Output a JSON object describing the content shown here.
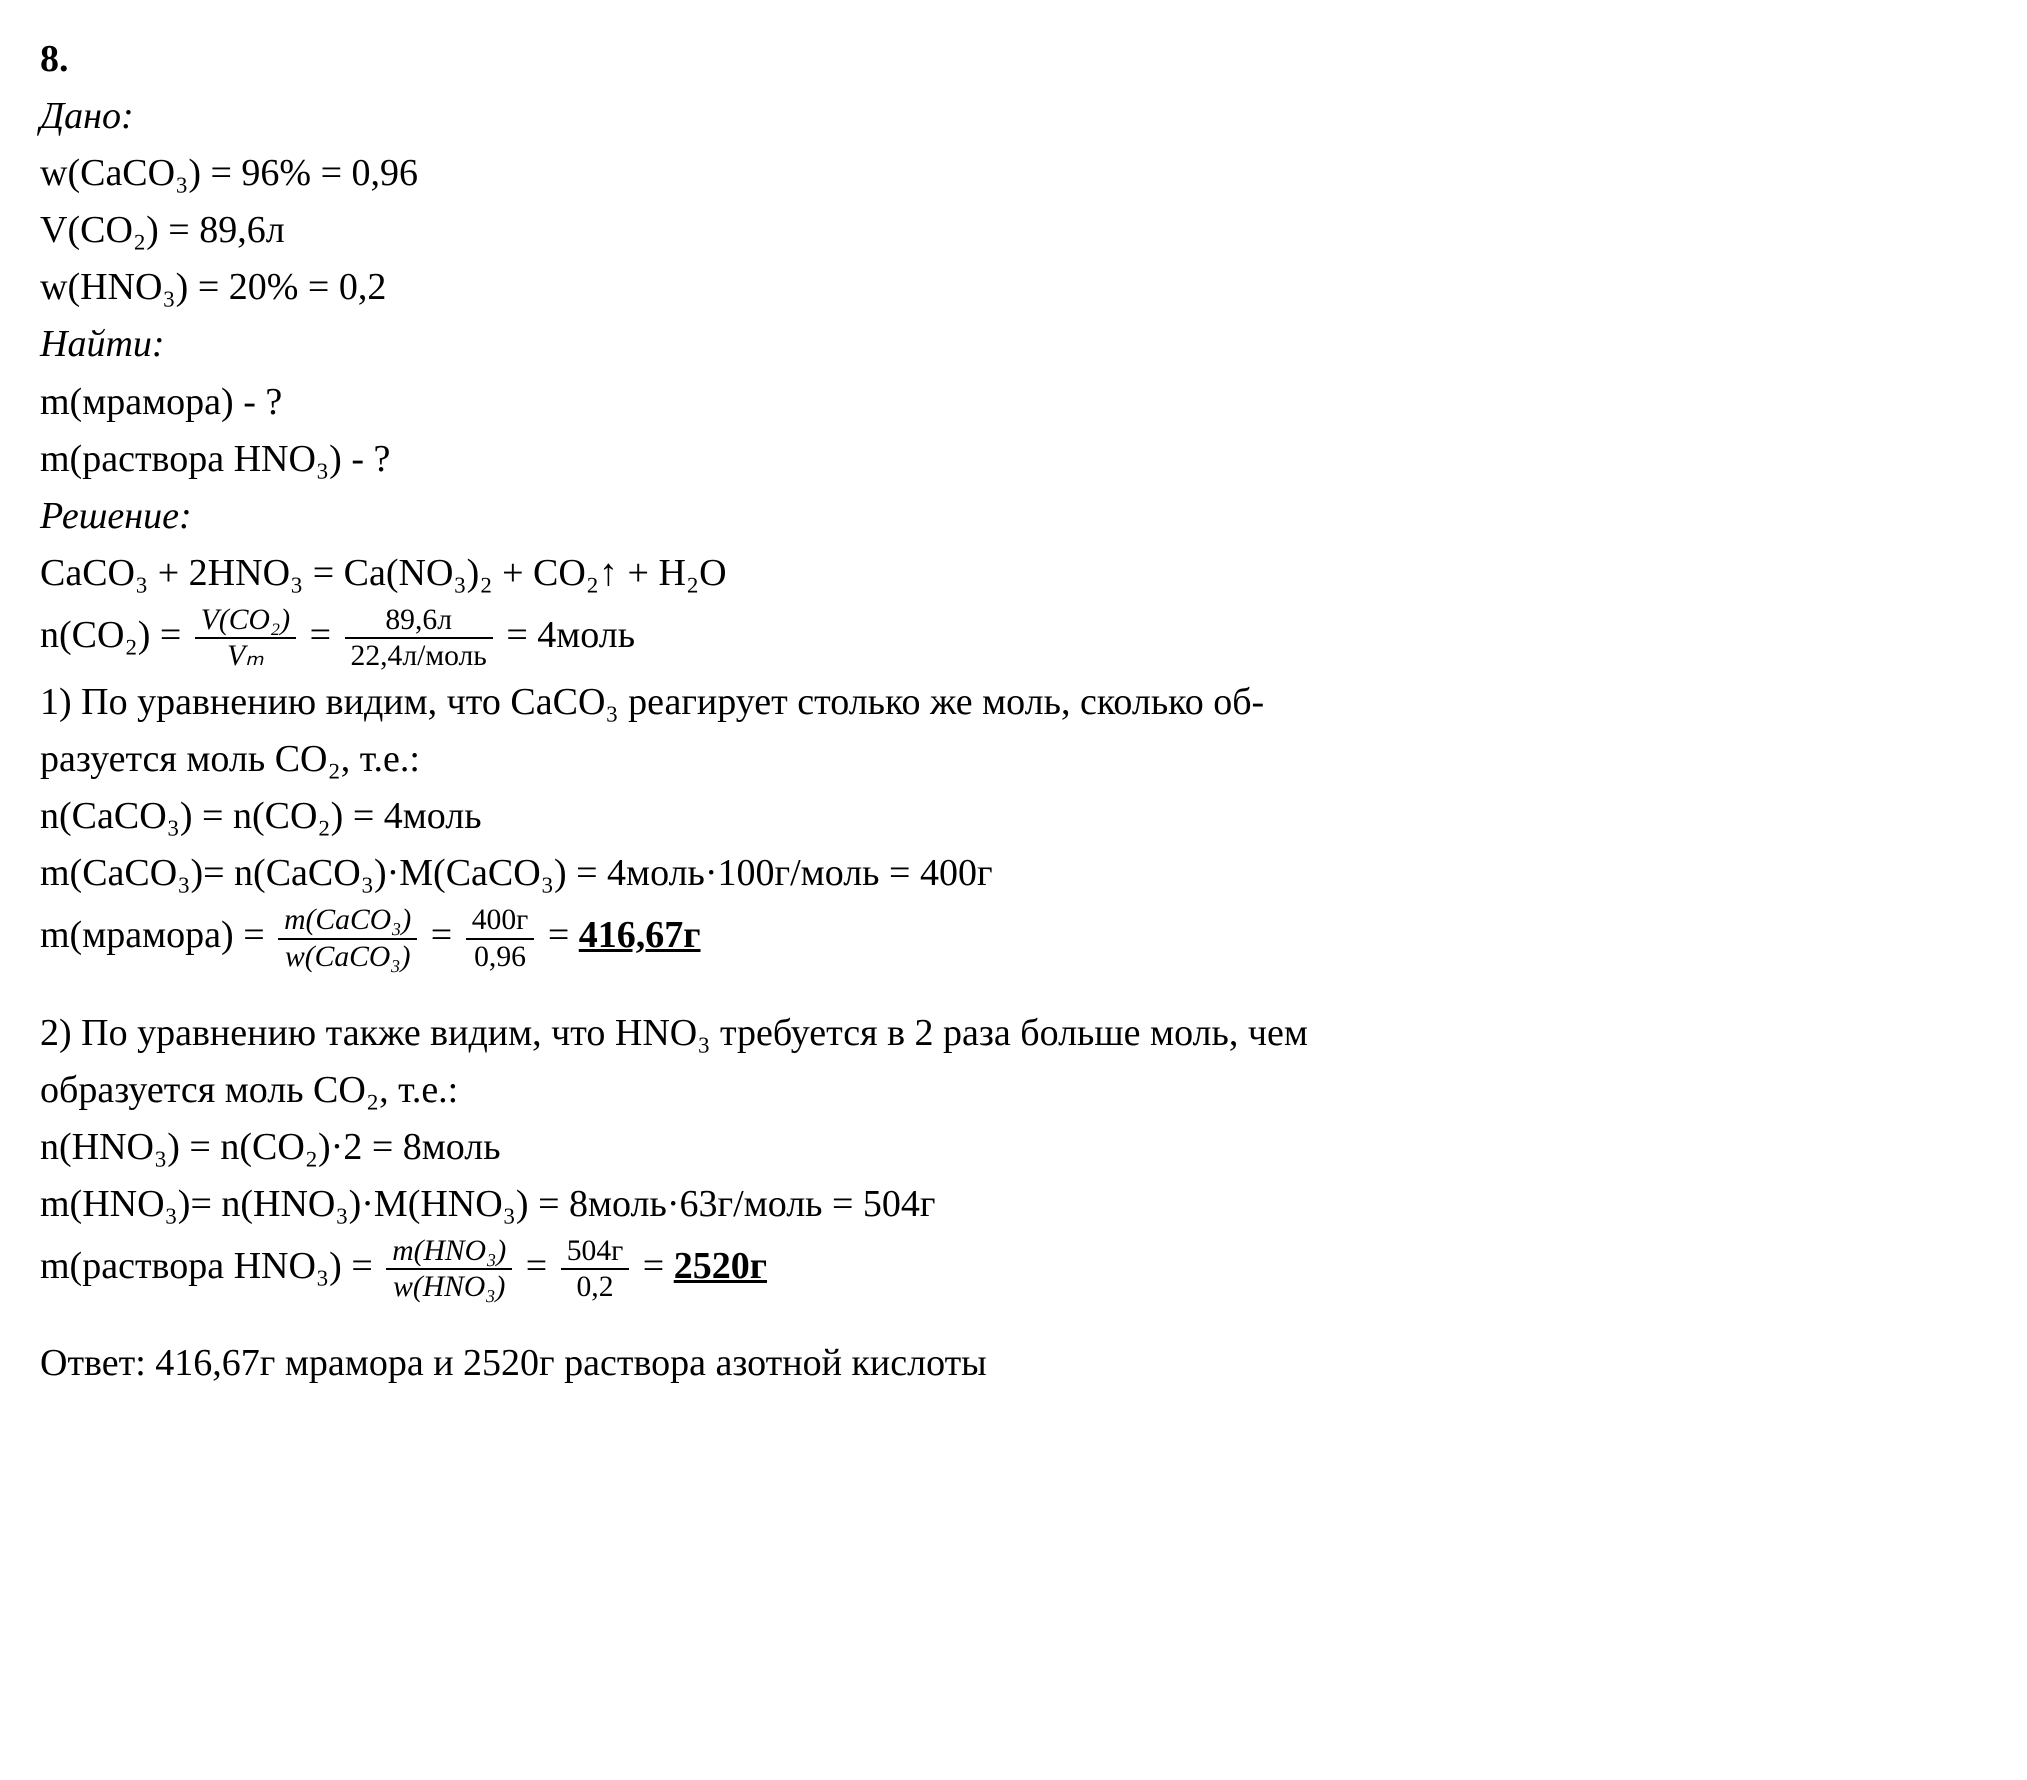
{
  "problem_number": "8.",
  "given_label": "Дано:",
  "given_lines": {
    "l1": "w(CaCO₃) = 96% = 0,96",
    "l2": "V(CO₂) = 89,6л",
    "l3": "w(HNO₃) = 20% = 0,2"
  },
  "find_label": "Найти:",
  "find_lines": {
    "l1": "m(мрамора) - ?",
    "l2": "m(раствора HNO₃) - ?"
  },
  "solution_label": "Решение:",
  "equation": "CaCO₃ + 2HNO₃ = Ca(NO₃)₂ + CO₂↑ + H₂O",
  "n_co2": {
    "left": "n(CO₂) = ",
    "f1_num": "V(CO₂)",
    "f1_den": "Vₘ",
    "mid": " = ",
    "f2_num": "89,6л",
    "f2_den": "22,4л/моль",
    "right": " = 4моль"
  },
  "part1": {
    "text_a": "1) По уравнению видим, что CaCO₃ реагирует столько же моль, сколько об-",
    "text_b": "разуется моль CO₂, т.е.:",
    "n_line": "n(CaCO₃) = n(CO₂) = 4моль",
    "m_line": "m(CaCO₃)= n(CaCO₃)·M(CaCO₃) = 4моль·100г/моль = 400г",
    "marble": {
      "left": "m(мрамора) = ",
      "f1_num": "m(CaCO₃)",
      "f1_den": "w(CaCO₃)",
      "mid": " = ",
      "f2_num": "400г",
      "f2_den": "0,96",
      "eq": " = ",
      "result": "416,67г"
    }
  },
  "part2": {
    "text_a": "2) По уравнению также видим, что HNO₃ требуется в 2 раза больше моль, чем",
    "text_b": "образуется моль CO₂, т.е.:",
    "n_line": "n(HNO₃) = n(CO₂)·2 = 8моль",
    "m_line": "m(HNO₃)= n(HNO₃)·M(HNO₃) = 8моль·63г/моль = 504г",
    "solution_mass": {
      "left": "m(раствора HNO₃) = ",
      "f1_num": "m(HNO₃)",
      "f1_den": "w(HNO₃)",
      "mid": " = ",
      "f2_num": "504г",
      "f2_den": "0,2",
      "eq": " = ",
      "result": "2520г"
    }
  },
  "answer": "Ответ: 416,67г мрамора и 2520г раствора азотной кислоты"
}
